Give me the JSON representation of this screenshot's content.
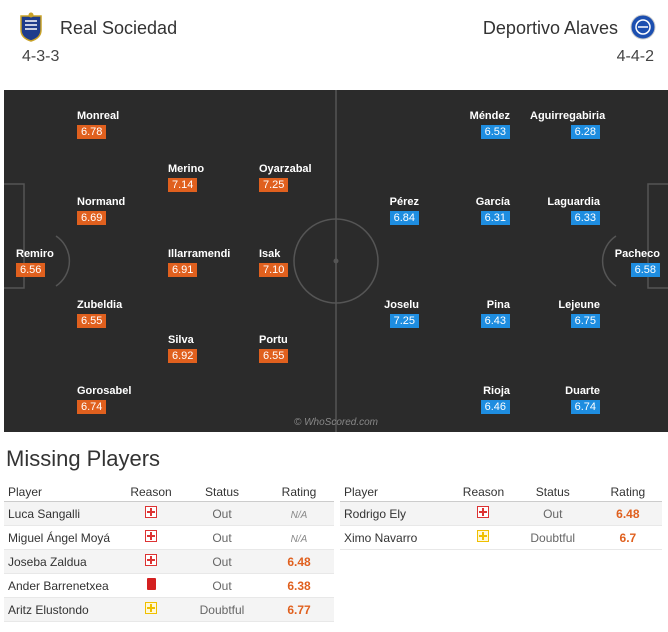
{
  "home": {
    "name": "Real Sociedad",
    "formation": "4-3-3",
    "crest_icon": "real-sociedad-crest-icon",
    "players": [
      {
        "name": "Remiro",
        "rating": "6.56"
      },
      {
        "name": "Monreal",
        "rating": "6.78"
      },
      {
        "name": "Normand",
        "rating": "6.69"
      },
      {
        "name": "Zubeldia",
        "rating": "6.55"
      },
      {
        "name": "Gorosabel",
        "rating": "6.74"
      },
      {
        "name": "Merino",
        "rating": "7.14"
      },
      {
        "name": "Illarramendi",
        "rating": "6.91"
      },
      {
        "name": "Silva",
        "rating": "6.92"
      },
      {
        "name": "Oyarzabal",
        "rating": "7.25"
      },
      {
        "name": "Isak",
        "rating": "7.10"
      },
      {
        "name": "Portu",
        "rating": "6.55"
      }
    ]
  },
  "away": {
    "name": "Deportivo Alaves",
    "formation": "4-4-2",
    "crest_icon": "alaves-crest-icon",
    "players": [
      {
        "name": "Pacheco",
        "rating": "6.58"
      },
      {
        "name": "Aguirregabiria",
        "rating": "6.28"
      },
      {
        "name": "Laguardia",
        "rating": "6.33"
      },
      {
        "name": "Lejeune",
        "rating": "6.75"
      },
      {
        "name": "Duarte",
        "rating": "6.74"
      },
      {
        "name": "Méndez",
        "rating": "6.53"
      },
      {
        "name": "García",
        "rating": "6.31"
      },
      {
        "name": "Pina",
        "rating": "6.43"
      },
      {
        "name": "Rioja",
        "rating": "6.46"
      },
      {
        "name": "Pérez",
        "rating": "6.84"
      },
      {
        "name": "Joselu",
        "rating": "7.25"
      }
    ]
  },
  "watermark": "© WhoScored.com",
  "missing": {
    "title": "Missing Players",
    "headers": {
      "player": "Player",
      "reason": "Reason",
      "status": "Status",
      "rating": "Rating"
    },
    "home": [
      {
        "name": "Luca Sangalli",
        "reason": "injury",
        "status": "Out",
        "rating": "N/A"
      },
      {
        "name": "Miguel Ángel Moyá",
        "reason": "injury",
        "status": "Out",
        "rating": "N/A"
      },
      {
        "name": "Joseba Zaldua",
        "reason": "injury",
        "status": "Out",
        "rating": "6.48"
      },
      {
        "name": "Ander Barrenetxea",
        "reason": "red-card",
        "status": "Out",
        "rating": "6.38"
      },
      {
        "name": "Aritz Elustondo",
        "reason": "doubtful",
        "status": "Doubtful",
        "rating": "6.77"
      }
    ],
    "away": [
      {
        "name": "Rodrigo Ely",
        "reason": "injury",
        "status": "Out",
        "rating": "6.48"
      },
      {
        "name": "Ximo Navarro",
        "reason": "doubtful",
        "status": "Doubtful",
        "rating": "6.7"
      }
    ]
  },
  "colors": {
    "home_rating": "#e0601e",
    "away_rating": "#1e8de0",
    "pitch": "#2b2b2b"
  }
}
